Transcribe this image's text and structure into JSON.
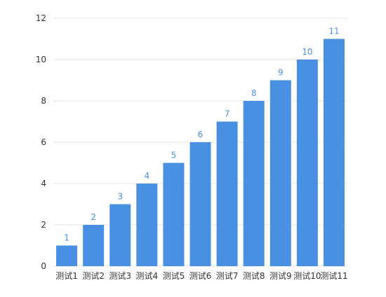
{
  "chart_data": {
    "type": "bar",
    "title": "",
    "xlabel": "",
    "ylabel": "",
    "categories": [
      "测试1",
      "测试2",
      "测试3",
      "测试4",
      "测试5",
      "测试6",
      "测试7",
      "测试8",
      "测试9",
      "测试10",
      "测试11"
    ],
    "values": [
      1,
      2,
      3,
      4,
      5,
      6,
      7,
      8,
      9,
      10,
      11
    ],
    "ylim": [
      0,
      12
    ],
    "yticks": [
      0,
      2,
      4,
      6,
      8,
      10,
      12
    ],
    "grid": true,
    "legend": "none",
    "data_labels": true,
    "colors": {
      "bar": "#4a90e2",
      "data_label": "#4a90e2",
      "grid": "#e6e6e6",
      "axis_text": "#333333"
    }
  }
}
